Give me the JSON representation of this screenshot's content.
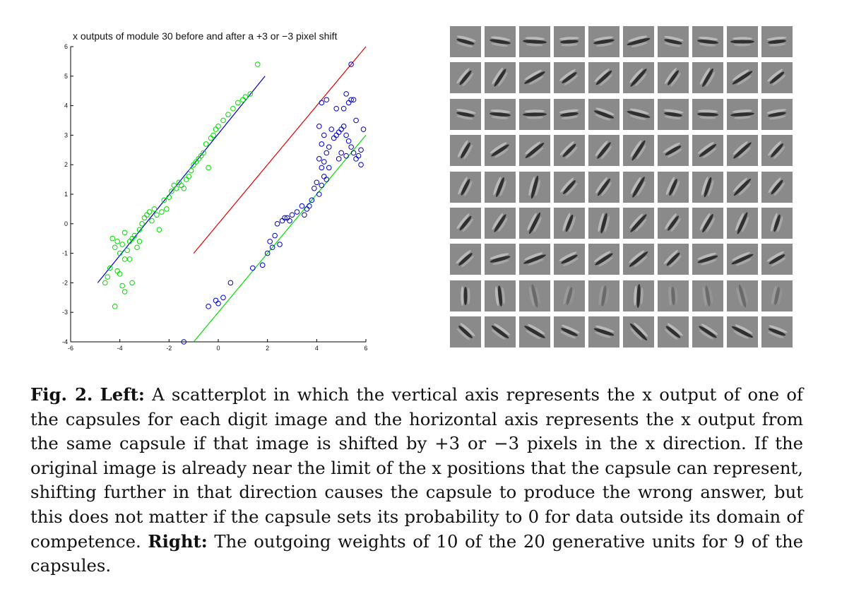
{
  "figure": {
    "label": "Fig. 2.",
    "left_label": "Left:",
    "left_text": "A scatterplot in which the vertical axis represents the x output of one of the capsules for each digit image and the horizontal axis represents the x output from the same capsule if that image is shifted by +3 or −3 pixels in the x direction. If the original image is already near the limit of the x positions that the capsule can represent, shifting further in that direction causes the capsule to produce the wrong answer, but this does not matter if the capsule sets its probability to 0 for data outside its domain of competence.",
    "right_label": "Right:",
    "right_text": "The outgoing weights of 10 of the 20 generative units for 9 of the capsules."
  },
  "weights_grid": {
    "rows": 9,
    "cols": 10,
    "tile_background": "#8a8a8a",
    "row_orientations_deg": [
      0,
      45,
      -5,
      45,
      60,
      60,
      30,
      90,
      -30
    ]
  },
  "chart_data": {
    "type": "scatter",
    "title": "x outputs of module 30 before and after a +3 or −3 pixel shift",
    "xlabel": "",
    "ylabel": "",
    "xlim": [
      -6,
      6
    ],
    "ylim": [
      -4,
      6
    ],
    "xticks": [
      "-6",
      "-4",
      "-2",
      "0",
      "2",
      "4",
      "6"
    ],
    "yticks": [
      "-4",
      "-3",
      "-2",
      "-1",
      "0",
      "1",
      "2",
      "3",
      "4",
      "5",
      "6"
    ],
    "grid": false,
    "series": [
      {
        "marker": "circle-open",
        "color": "#00dd00",
        "points": [
          [
            -4.6,
            -2
          ],
          [
            -4.5,
            -1.8
          ],
          [
            -4.4,
            -1.5
          ],
          [
            -4.2,
            -2.8
          ],
          [
            -4.1,
            -1.6
          ],
          [
            -4,
            -1.7
          ],
          [
            -3.9,
            -2.1
          ],
          [
            -3.8,
            -2.3
          ],
          [
            -3.6,
            -1.2
          ],
          [
            -3.5,
            -2
          ],
          [
            -4.3,
            -0.5
          ],
          [
            -4.2,
            -0.8
          ],
          [
            -4.1,
            -0.6
          ],
          [
            -4,
            -1
          ],
          [
            -3.9,
            -0.7
          ],
          [
            -3.8,
            -1.2
          ],
          [
            -3.7,
            -0.9
          ],
          [
            -3.6,
            -0.6
          ],
          [
            -3.5,
            -0.5
          ],
          [
            -3.4,
            -0.4
          ],
          [
            -3.8,
            -0.3
          ],
          [
            -3.2,
            -0.2
          ],
          [
            -3.1,
            0
          ],
          [
            -3,
            0.2
          ],
          [
            -2.9,
            0.3
          ],
          [
            -2.8,
            0.4
          ],
          [
            -2.7,
            0.1
          ],
          [
            -2.6,
            0.5
          ],
          [
            -2.5,
            0.3
          ],
          [
            -2.4,
            -0.2
          ],
          [
            -2.3,
            0.4
          ],
          [
            -2.1,
            0.5
          ],
          [
            -2,
            0.9
          ],
          [
            -1.9,
            1.1
          ],
          [
            -1.8,
            1.3
          ],
          [
            -1.7,
            1.2
          ],
          [
            -1.6,
            1.4
          ],
          [
            -1.5,
            1.3
          ],
          [
            -1.4,
            1.2
          ],
          [
            -1.2,
            1.6
          ],
          [
            -1.1,
            1.8
          ],
          [
            -1,
            2
          ],
          [
            -0.9,
            2.1
          ],
          [
            -0.8,
            2.2
          ],
          [
            -0.7,
            2.3
          ],
          [
            -0.6,
            2.4
          ],
          [
            -0.5,
            2.7
          ],
          [
            -0.4,
            1.9
          ],
          [
            -0.3,
            2.9
          ],
          [
            -0.2,
            3
          ],
          [
            -0.1,
            3.2
          ],
          [
            0,
            3.3
          ],
          [
            0.2,
            3.5
          ],
          [
            0.4,
            3.7
          ],
          [
            0.6,
            3.9
          ],
          [
            0.8,
            4.1
          ],
          [
            1.0,
            4.2
          ],
          [
            1.1,
            4.3
          ],
          [
            1.3,
            4.4
          ],
          [
            1.6,
            5.4
          ],
          [
            -3.3,
            -0.8
          ],
          [
            -3.2,
            -0.6
          ],
          [
            -2.2,
            0.8
          ],
          [
            -1.3,
            1.5
          ]
        ]
      },
      {
        "marker": "circle-open",
        "color": "#0000cc",
        "points": [
          [
            -1.4,
            -4
          ],
          [
            -0.4,
            -2.8
          ],
          [
            -0.1,
            -2.6
          ],
          [
            0,
            -2.7
          ],
          [
            0.2,
            -2.5
          ],
          [
            0.5,
            -2
          ],
          [
            1.4,
            -1.5
          ],
          [
            1.8,
            -1.4
          ],
          [
            2,
            -1
          ],
          [
            2.2,
            -0.8
          ],
          [
            2.1,
            -0.6
          ],
          [
            2.3,
            -0.4
          ],
          [
            2.5,
            -0.7
          ],
          [
            2.4,
            0
          ],
          [
            2.6,
            0.1
          ],
          [
            2.8,
            0.2
          ],
          [
            3,
            0.3
          ],
          [
            3.2,
            0.4
          ],
          [
            3.4,
            0.6
          ],
          [
            3.6,
            0.5
          ],
          [
            3.8,
            0.8
          ],
          [
            3.9,
            1.2
          ],
          [
            4,
            1.4
          ],
          [
            4.1,
            1
          ],
          [
            4.2,
            1.3
          ],
          [
            4.3,
            1.6
          ],
          [
            4.4,
            1.5
          ],
          [
            4.5,
            1.9
          ],
          [
            4.3,
            2.1
          ],
          [
            4.2,
            1.9
          ],
          [
            4.4,
            2.4
          ],
          [
            4.1,
            2.2
          ],
          [
            4.2,
            2.7
          ],
          [
            4.3,
            3
          ],
          [
            4.1,
            3.3
          ],
          [
            4.5,
            2.6
          ],
          [
            4.6,
            3.2
          ],
          [
            4.7,
            2.9
          ],
          [
            4.8,
            3
          ],
          [
            4.9,
            3.1
          ],
          [
            5,
            3.2
          ],
          [
            5.1,
            3.3
          ],
          [
            5.2,
            3
          ],
          [
            5.3,
            2.8
          ],
          [
            5.4,
            2.6
          ],
          [
            5.5,
            2.4
          ],
          [
            5.6,
            2.2
          ],
          [
            5.7,
            2.3
          ],
          [
            5.8,
            2.5
          ],
          [
            5.9,
            3.2
          ],
          [
            5.6,
            3.5
          ],
          [
            5.0,
            2.4
          ],
          [
            5.2,
            2.3
          ],
          [
            5.4,
            4.2
          ],
          [
            5.3,
            4.1
          ],
          [
            5.2,
            4.4
          ],
          [
            5.1,
            3.9
          ],
          [
            4.8,
            3.9
          ],
          [
            4.4,
            4.2
          ],
          [
            4.2,
            4.1
          ],
          [
            3.5,
            0.3
          ],
          [
            3.7,
            0.6
          ],
          [
            5.4,
            5.4
          ],
          [
            2.7,
            0.2
          ],
          [
            2.9,
            0.1
          ],
          [
            5.5,
            4.2
          ],
          [
            4.9,
            2.2
          ],
          [
            5.8,
            2
          ]
        ]
      }
    ],
    "lines": [
      {
        "color": "#0000cc",
        "x": [
          -4.9,
          1.9
        ],
        "y": [
          -2,
          5
        ]
      },
      {
        "color": "#dd0000",
        "x": [
          -1,
          6
        ],
        "y": [
          -1,
          6
        ]
      },
      {
        "color": "#00dd00",
        "x": [
          -1,
          6
        ],
        "y": [
          -4,
          3
        ]
      }
    ]
  }
}
